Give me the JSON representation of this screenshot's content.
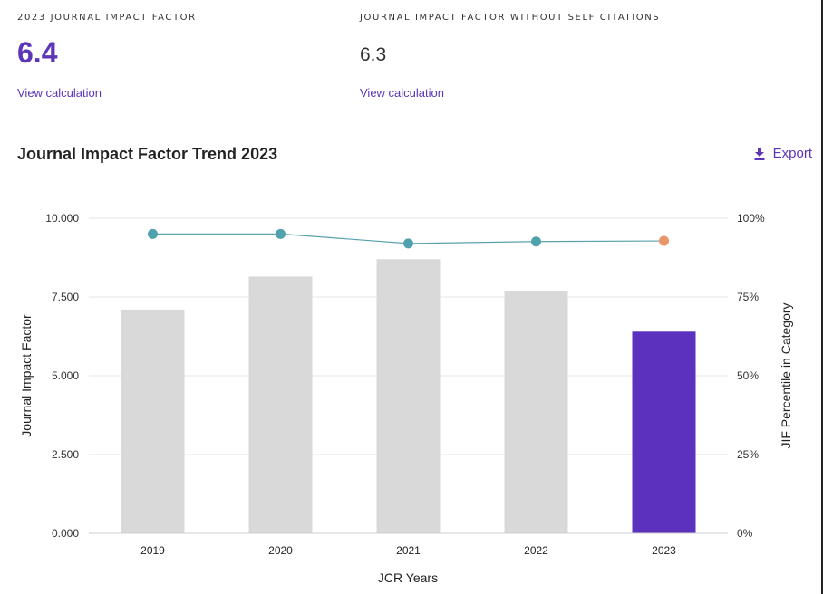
{
  "metrics": [
    {
      "label": "2023 JOURNAL IMPACT FACTOR",
      "value": "6.4",
      "link": "View calculation"
    },
    {
      "label": "JOURNAL IMPACT FACTOR WITHOUT SELF CITATIONS",
      "value": "6.3",
      "link": "View calculation"
    }
  ],
  "section": {
    "title": "Journal Impact Factor Trend 2023",
    "export_label": "Export"
  },
  "colors": {
    "accent": "#5c35b8",
    "bar": "#d9d9d9",
    "bar_current": "#5c31be",
    "line": "#5aa3b0",
    "point": "#4ea1ad",
    "point_current": "#e8956a",
    "grid": "#e6e6e6"
  },
  "chart_data": {
    "type": "bar",
    "categories": [
      "2019",
      "2020",
      "2021",
      "2022",
      "2023"
    ],
    "series": [
      {
        "name": "Journal Impact Factor",
        "type": "bar",
        "axis": "left",
        "values": [
          7.1,
          8.15,
          8.7,
          7.7,
          6.4
        ]
      },
      {
        "name": "JIF Percentile in Category",
        "type": "line",
        "axis": "right",
        "values": [
          95,
          95,
          92,
          92.6,
          92.8
        ]
      }
    ],
    "highlight_category": "2023",
    "xlabel": "JCR Years",
    "ylabel": "Journal Impact Factor",
    "y2label": "JIF Percentile in Category",
    "ylim": [
      0,
      10
    ],
    "y2lim": [
      0,
      100
    ],
    "yticks": [
      "0.000",
      "2.500",
      "5.000",
      "7.500",
      "10.000"
    ],
    "y2ticks": [
      "0%",
      "25%",
      "50%",
      "75%",
      "100%"
    ],
    "grid": true
  }
}
